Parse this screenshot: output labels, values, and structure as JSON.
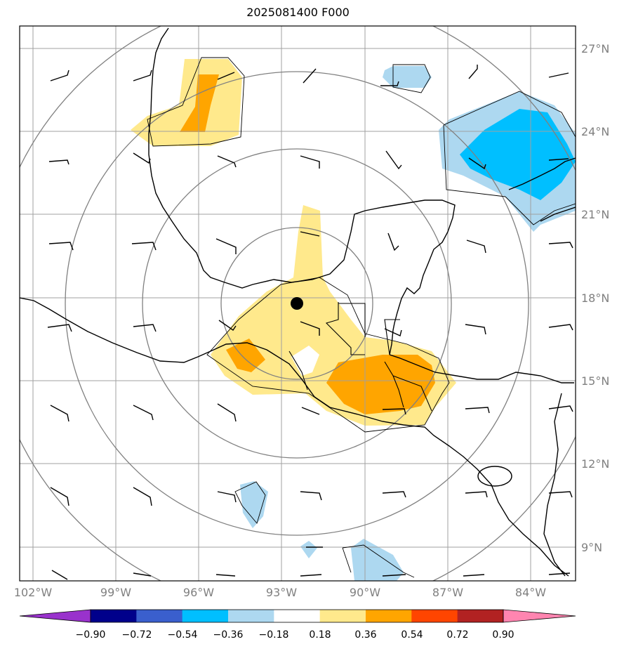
{
  "title": "2025081400 F000",
  "lat_labels": [
    "27°N",
    "24°N",
    "21°N",
    "18°N",
    "15°N",
    "12°N",
    "9°N"
  ],
  "lon_labels": [
    "102°W",
    "99°W",
    "96°W",
    "93°W",
    "90°W",
    "87°W",
    "84°W"
  ],
  "colorbar": {
    "ticks": [
      "−0.90",
      "−0.72",
      "−0.54",
      "−0.36",
      "−0.18",
      "0.18",
      "0.36",
      "0.54",
      "0.72",
      "0.90"
    ],
    "colors": [
      "#9932cc",
      "#00008b",
      "#3a5fcd",
      "#00bfff",
      "#add8f0",
      "#ffffff",
      "#ffe98c",
      "#ffa500",
      "#ff4500",
      "#b22222",
      "#ff85b0"
    ]
  },
  "center_marker": "storm-center-dot"
}
